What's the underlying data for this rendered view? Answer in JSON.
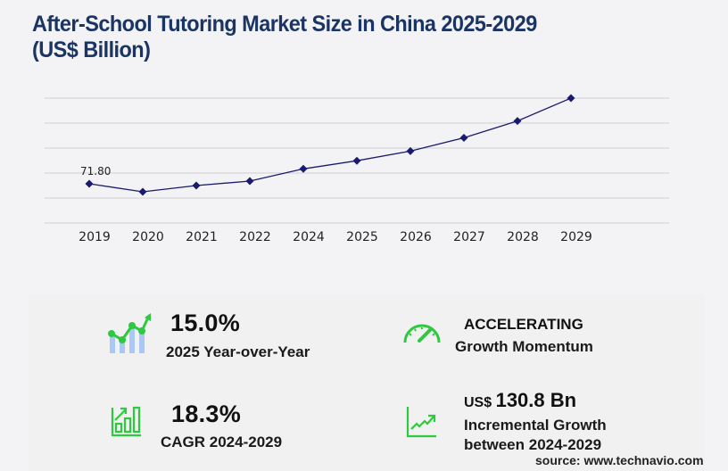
{
  "title": {
    "line1": "After-School Tutoring Market Size in China 2025-2029",
    "line2": "(US$ Billion)"
  },
  "chart_data": {
    "type": "line",
    "title": "After-School Tutoring Market Size in China 2025-2029 (US$ Billion)",
    "xlabel": "",
    "ylabel": "US$ Billion",
    "categories": [
      "2019",
      "2020",
      "2021",
      "2022",
      "2024",
      "2025",
      "2026",
      "2027",
      "2028",
      "2029"
    ],
    "values": [
      71.8,
      57.0,
      68.5,
      76.7,
      99.4,
      114.3,
      132.2,
      156.8,
      188.0,
      230.2
    ],
    "annotations": [
      {
        "category": "2019",
        "label": "71.80"
      }
    ],
    "grid": true,
    "gridlines": 6,
    "y_axis_labels_visible": false,
    "line_color": "#1b1b6e",
    "marker": "diamond",
    "legend": null
  },
  "stats": [
    {
      "icon": "growth-chart-icon",
      "value": "15.0%",
      "label": "2025 Year-over-Year"
    },
    {
      "icon": "speedometer-icon",
      "value": "ACCELERATING",
      "label": "Growth Momentum"
    },
    {
      "icon": "bar-chart-arrow-icon",
      "value": "18.3%",
      "label": "CAGR 2024-2029"
    },
    {
      "icon": "trend-line-icon",
      "value_prefix": "US$",
      "value": "130.8 Bn",
      "label_line1": "Incremental Growth",
      "label_line2": "between 2024-2029"
    }
  ],
  "source": "source: www.technavio.com",
  "colors": {
    "title": "#1a3563",
    "line": "#1b1b6e",
    "icon_green": "#2ec93e",
    "icon_blue": "#a9c8f5",
    "background": "#f3f3f6"
  }
}
